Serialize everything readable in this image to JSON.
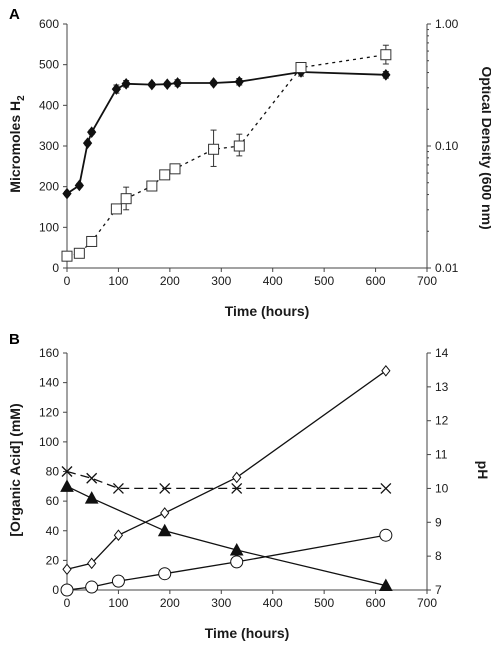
{
  "chart_data": [
    {
      "panel": "A",
      "type": "line",
      "xlabel": "Time (hours)",
      "ylabel_main": "Micromoles H",
      "ylabel_sub": "2",
      "ylabel_right": "Optical Density (600 nm)",
      "xlim": [
        0,
        700
      ],
      "ylim": [
        0,
        600
      ],
      "ylim_right": [
        0.01,
        1.0
      ],
      "right_axis_scale": "log",
      "x_ticks": [
        0,
        100,
        200,
        300,
        400,
        500,
        600,
        700
      ],
      "y_ticks": [
        0,
        100,
        200,
        300,
        400,
        500,
        600
      ],
      "y_right_ticks": [
        0.01,
        0.1,
        1.0
      ],
      "y_right_tick_labels": [
        "0.01",
        "0.10",
        "1.00"
      ],
      "grid": false,
      "series": [
        {
          "axis": "left",
          "marker": "filled-diamond",
          "line": "solid",
          "color": "#111111",
          "points": [
            {
              "x": 0,
              "y": 183,
              "err": 5
            },
            {
              "x": 24,
              "y": 203,
              "err": 5
            },
            {
              "x": 40,
              "y": 307,
              "err": 5
            },
            {
              "x": 48,
              "y": 334,
              "err": 5
            },
            {
              "x": 96,
              "y": 440,
              "err": 10
            },
            {
              "x": 115,
              "y": 453,
              "err": 8
            },
            {
              "x": 165,
              "y": 451,
              "err": 5
            },
            {
              "x": 195,
              "y": 452,
              "err": 5
            },
            {
              "x": 215,
              "y": 455,
              "err": 8
            },
            {
              "x": 285,
              "y": 455,
              "err": 5
            },
            {
              "x": 335,
              "y": 458,
              "err": 8
            },
            {
              "x": 455,
              "y": 482,
              "err": 10
            },
            {
              "x": 620,
              "y": 475,
              "err": 8
            }
          ]
        },
        {
          "axis": "right",
          "marker": "open-square",
          "line": "dotted",
          "color": "#111111",
          "points": [
            {
              "x": 0,
              "y": 0.0125,
              "y_lo": 0.0125,
              "y_hi": 0.0125
            },
            {
              "x": 24,
              "y": 0.0132,
              "y_lo": 0.0132,
              "y_hi": 0.0132
            },
            {
              "x": 48,
              "y": 0.0165,
              "y_lo": 0.0165,
              "y_hi": 0.0165
            },
            {
              "x": 96,
              "y": 0.0305,
              "y_lo": 0.0305,
              "y_hi": 0.0305
            },
            {
              "x": 115,
              "y": 0.037,
              "y_lo": 0.03,
              "y_hi": 0.046
            },
            {
              "x": 165,
              "y": 0.047,
              "y_lo": 0.044,
              "y_hi": 0.05
            },
            {
              "x": 190,
              "y": 0.058,
              "y_lo": 0.054,
              "y_hi": 0.063
            },
            {
              "x": 210,
              "y": 0.065,
              "y_lo": 0.062,
              "y_hi": 0.068
            },
            {
              "x": 285,
              "y": 0.094,
              "y_lo": 0.068,
              "y_hi": 0.135
            },
            {
              "x": 335,
              "y": 0.1,
              "y_lo": 0.083,
              "y_hi": 0.125
            },
            {
              "x": 455,
              "y": 0.44,
              "y_lo": 0.4,
              "y_hi": 0.48
            },
            {
              "x": 620,
              "y": 0.56,
              "y_lo": 0.47,
              "y_hi": 0.67
            }
          ]
        }
      ]
    },
    {
      "panel": "B",
      "type": "line",
      "xlabel": "Time (hours)",
      "ylabel": "[Organic Acid] (mM)",
      "ylabel_right": "pH",
      "xlim": [
        0,
        700
      ],
      "ylim": [
        0,
        160
      ],
      "ylim_right": [
        7,
        14
      ],
      "x_ticks": [
        0,
        100,
        200,
        300,
        400,
        500,
        600,
        700
      ],
      "y_ticks": [
        0,
        20,
        40,
        60,
        80,
        100,
        120,
        140,
        160
      ],
      "y_right_ticks": [
        7,
        8,
        9,
        10,
        11,
        12,
        13,
        14
      ],
      "grid": false,
      "series": [
        {
          "axis": "left",
          "marker": "open-diamond",
          "line": "solid",
          "color": "#111111",
          "points": [
            {
              "x": 0,
              "y": 14
            },
            {
              "x": 48,
              "y": 18
            },
            {
              "x": 100,
              "y": 37
            },
            {
              "x": 190,
              "y": 52
            },
            {
              "x": 330,
              "y": 76
            },
            {
              "x": 620,
              "y": 148
            }
          ]
        },
        {
          "axis": "left",
          "marker": "open-circle",
          "line": "solid",
          "color": "#111111",
          "points": [
            {
              "x": 0,
              "y": 0
            },
            {
              "x": 48,
              "y": 2
            },
            {
              "x": 100,
              "y": 6
            },
            {
              "x": 190,
              "y": 11
            },
            {
              "x": 330,
              "y": 19
            },
            {
              "x": 620,
              "y": 37
            }
          ]
        },
        {
          "axis": "left",
          "marker": "filled-triangle",
          "line": "solid",
          "color": "#111111",
          "points": [
            {
              "x": 0,
              "y": 70
            },
            {
              "x": 48,
              "y": 62
            },
            {
              "x": 190,
              "y": 40
            },
            {
              "x": 330,
              "y": 27
            },
            {
              "x": 620,
              "y": 3
            }
          ]
        },
        {
          "axis": "right",
          "marker": "x",
          "line": "dashed",
          "color": "#111111",
          "points": [
            {
              "x": 0,
              "y": 10.5
            },
            {
              "x": 48,
              "y": 10.3
            },
            {
              "x": 100,
              "y": 10.0
            },
            {
              "x": 190,
              "y": 10.0
            },
            {
              "x": 330,
              "y": 10.0
            },
            {
              "x": 620,
              "y": 10.0
            }
          ]
        }
      ]
    }
  ]
}
